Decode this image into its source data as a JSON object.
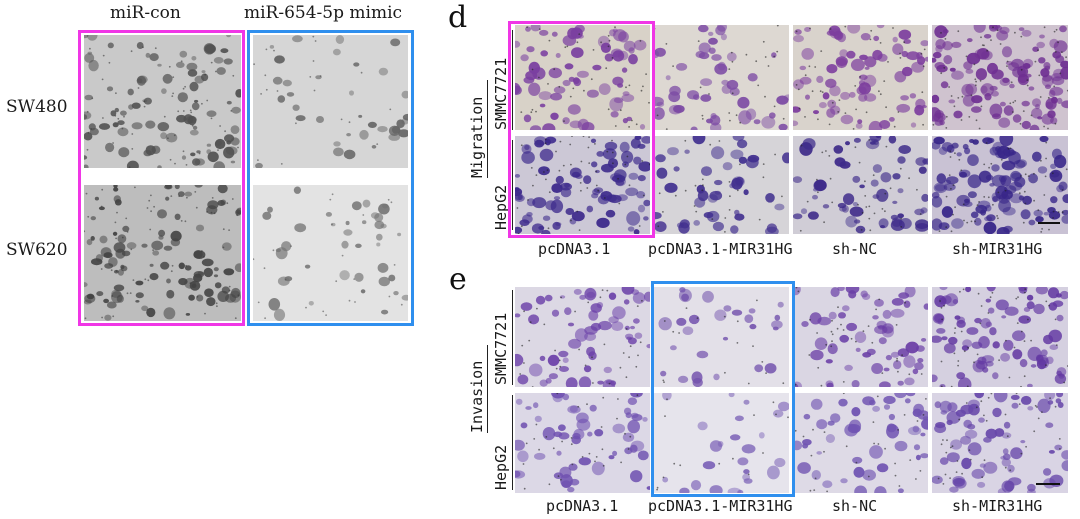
{
  "left_panel": {
    "columns": [
      "miR-con",
      "miR-654-5p mimic"
    ],
    "rows": [
      "SW480",
      "SW620"
    ],
    "highlight_colors": {
      "magenta": "#f036e6",
      "blue": "#2f8fee"
    }
  },
  "panel_d": {
    "letter": "d",
    "assay": "Migration",
    "rows": [
      "SMMC7721",
      "HepG2"
    ],
    "columns": [
      "pcDNA3.1",
      "pcDNA3.1-MIR31HG",
      "sh-NC",
      "sh-MIR31HG"
    ]
  },
  "panel_e": {
    "letter": "e",
    "assay": "Invasion",
    "rows": [
      "SMMC7721",
      "HepG2"
    ],
    "columns": [
      "pcDNA3.1",
      "pcDNA3.1-MIR31HG",
      "sh-NC",
      "sh-MIR31HG"
    ]
  }
}
